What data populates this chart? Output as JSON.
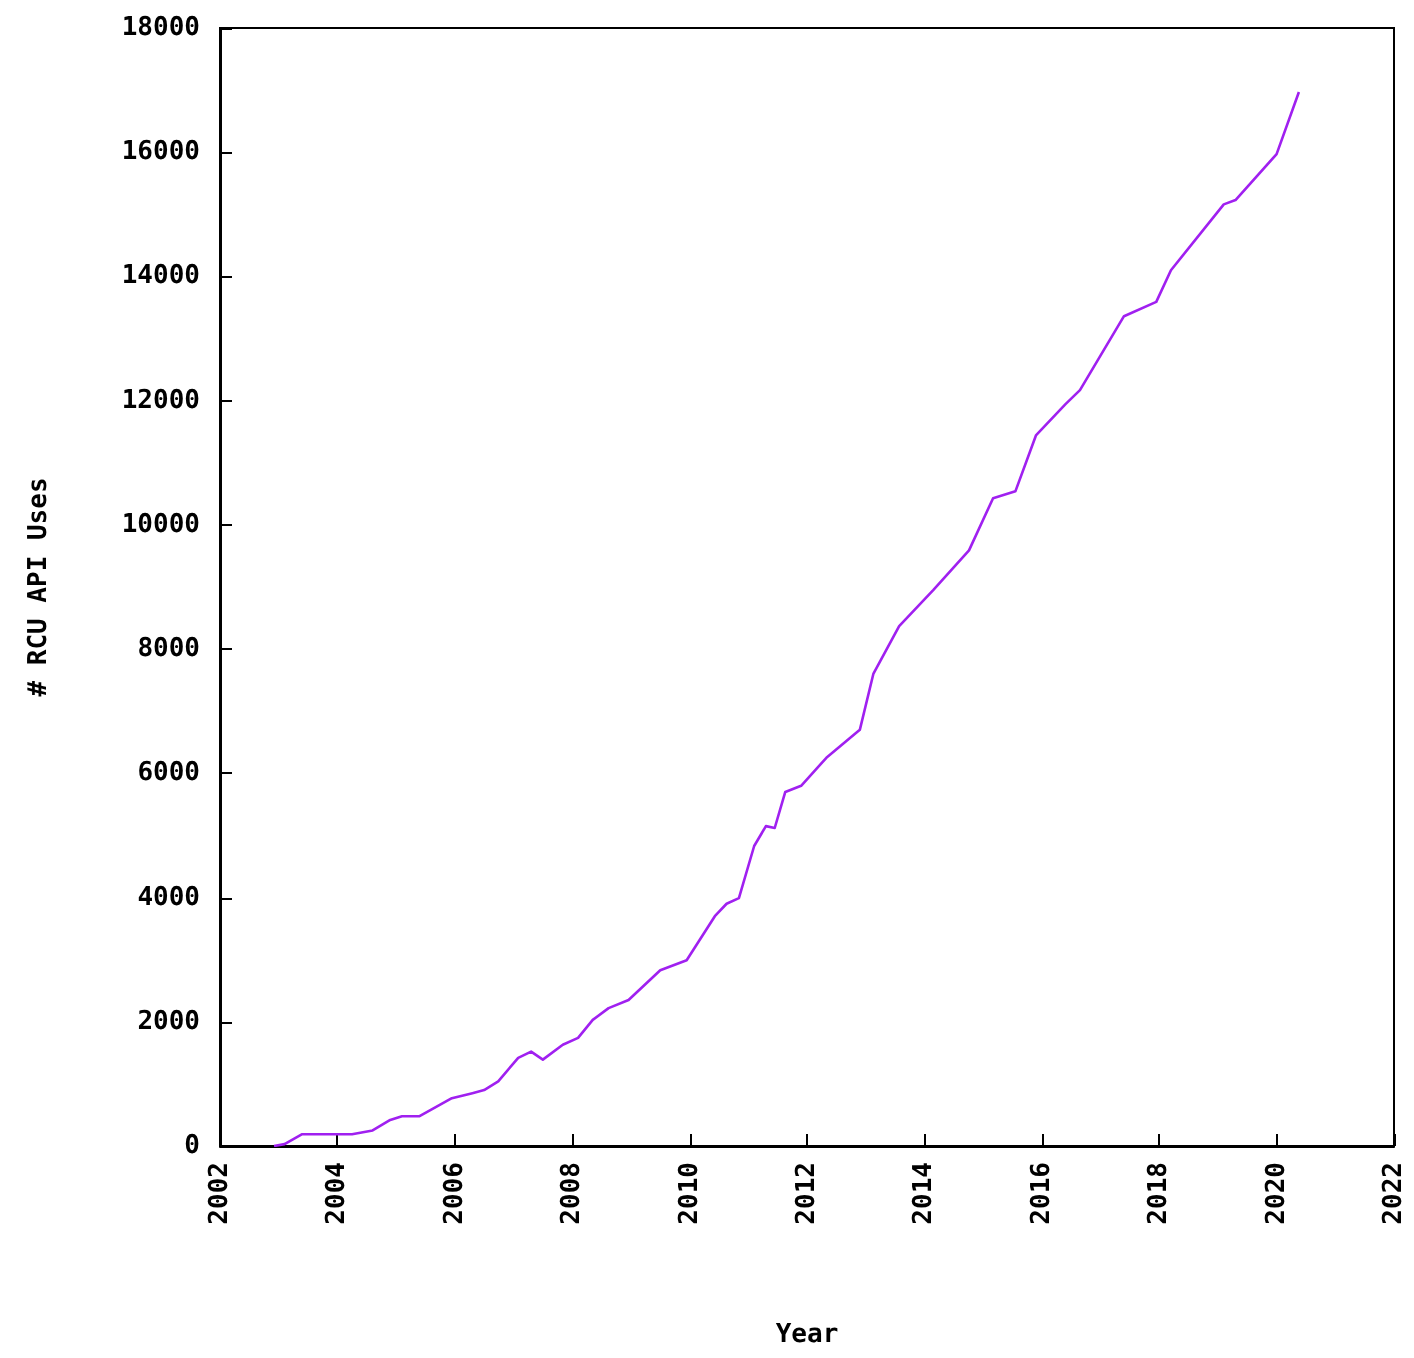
{
  "chart_data": {
    "type": "line",
    "xlabel": "Year",
    "ylabel": "# RCU API Uses",
    "xlim": [
      2002,
      2022
    ],
    "xticks": [
      2002,
      2004,
      2006,
      2008,
      2010,
      2012,
      2014,
      2016,
      2018,
      2020,
      2022
    ],
    "ylim": [
      0,
      18000
    ],
    "yticks": [
      0,
      2000,
      4000,
      6000,
      8000,
      10000,
      12000,
      14000,
      16000,
      18000
    ],
    "grid": false,
    "marker": "none",
    "line_style": "solid",
    "series": [
      {
        "color": "#a020f0",
        "x": [
          2002.92,
          2003.1,
          2003.4,
          2004.25,
          2004.6,
          2004.9,
          2005.1,
          2005.4,
          2005.95,
          2006.3,
          2006.5,
          2006.74,
          2007.08,
          2007.3,
          2007.5,
          2007.84,
          2008.1,
          2008.35,
          2008.62,
          2008.96,
          2009.5,
          2009.95,
          2010.43,
          2010.63,
          2010.84,
          2011.1,
          2011.3,
          2011.45,
          2011.63,
          2011.9,
          2012.33,
          2012.9,
          2013.13,
          2013.57,
          2014.15,
          2014.76,
          2015.17,
          2015.55,
          2015.9,
          2016.4,
          2016.65,
          2017.4,
          2017.95,
          2018.2,
          2019.1,
          2019.3,
          2020.0,
          2020.38
        ],
        "values": [
          0,
          30,
          190,
          190,
          250,
          420,
          480,
          480,
          770,
          850,
          900,
          1040,
          1420,
          1520,
          1390,
          1630,
          1740,
          2030,
          2220,
          2350,
          2830,
          2990,
          3700,
          3900,
          3990,
          4830,
          5150,
          5120,
          5700,
          5800,
          6250,
          6700,
          7600,
          8370,
          8950,
          9590,
          10430,
          10540,
          11440,
          11940,
          12170,
          13360,
          13590,
          14100,
          15160,
          15230,
          15970,
          16970
        ]
      }
    ]
  }
}
